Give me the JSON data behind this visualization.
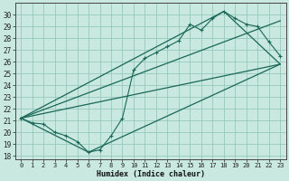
{
  "xlabel": "Humidex (Indice chaleur)",
  "bg_color": "#c8e8e0",
  "grid_color": "#96c8bc",
  "line_color": "#1a6858",
  "xlim": [
    -0.5,
    23.5
  ],
  "ylim": [
    17.7,
    31.0
  ],
  "xticks": [
    0,
    1,
    2,
    3,
    4,
    5,
    6,
    7,
    8,
    9,
    10,
    11,
    12,
    13,
    14,
    15,
    16,
    17,
    18,
    19,
    20,
    21,
    22,
    23
  ],
  "yticks": [
    18,
    19,
    20,
    21,
    22,
    23,
    24,
    25,
    26,
    27,
    28,
    29,
    30
  ],
  "main_line": [
    [
      0,
      21.2
    ],
    [
      1,
      20.8
    ],
    [
      2,
      20.7
    ],
    [
      3,
      20.0
    ],
    [
      4,
      19.7
    ],
    [
      5,
      19.2
    ],
    [
      6,
      18.3
    ],
    [
      7,
      18.5
    ],
    [
      8,
      19.7
    ],
    [
      9,
      21.2
    ],
    [
      10,
      25.3
    ],
    [
      11,
      26.3
    ],
    [
      12,
      26.8
    ],
    [
      13,
      27.3
    ],
    [
      14,
      27.8
    ],
    [
      15,
      29.2
    ],
    [
      16,
      28.7
    ],
    [
      17,
      29.7
    ],
    [
      18,
      30.3
    ],
    [
      19,
      29.7
    ],
    [
      20,
      29.2
    ],
    [
      21,
      29.0
    ],
    [
      22,
      27.7
    ],
    [
      23,
      26.5
    ]
  ],
  "line1": [
    [
      0,
      21.2
    ],
    [
      23,
      29.5
    ]
  ],
  "line2": [
    [
      0,
      21.2
    ],
    [
      23,
      25.8
    ]
  ],
  "envelope": [
    [
      0,
      21.2
    ],
    [
      6,
      18.3
    ],
    [
      23,
      25.8
    ],
    [
      18,
      30.3
    ],
    [
      0,
      21.2
    ]
  ]
}
